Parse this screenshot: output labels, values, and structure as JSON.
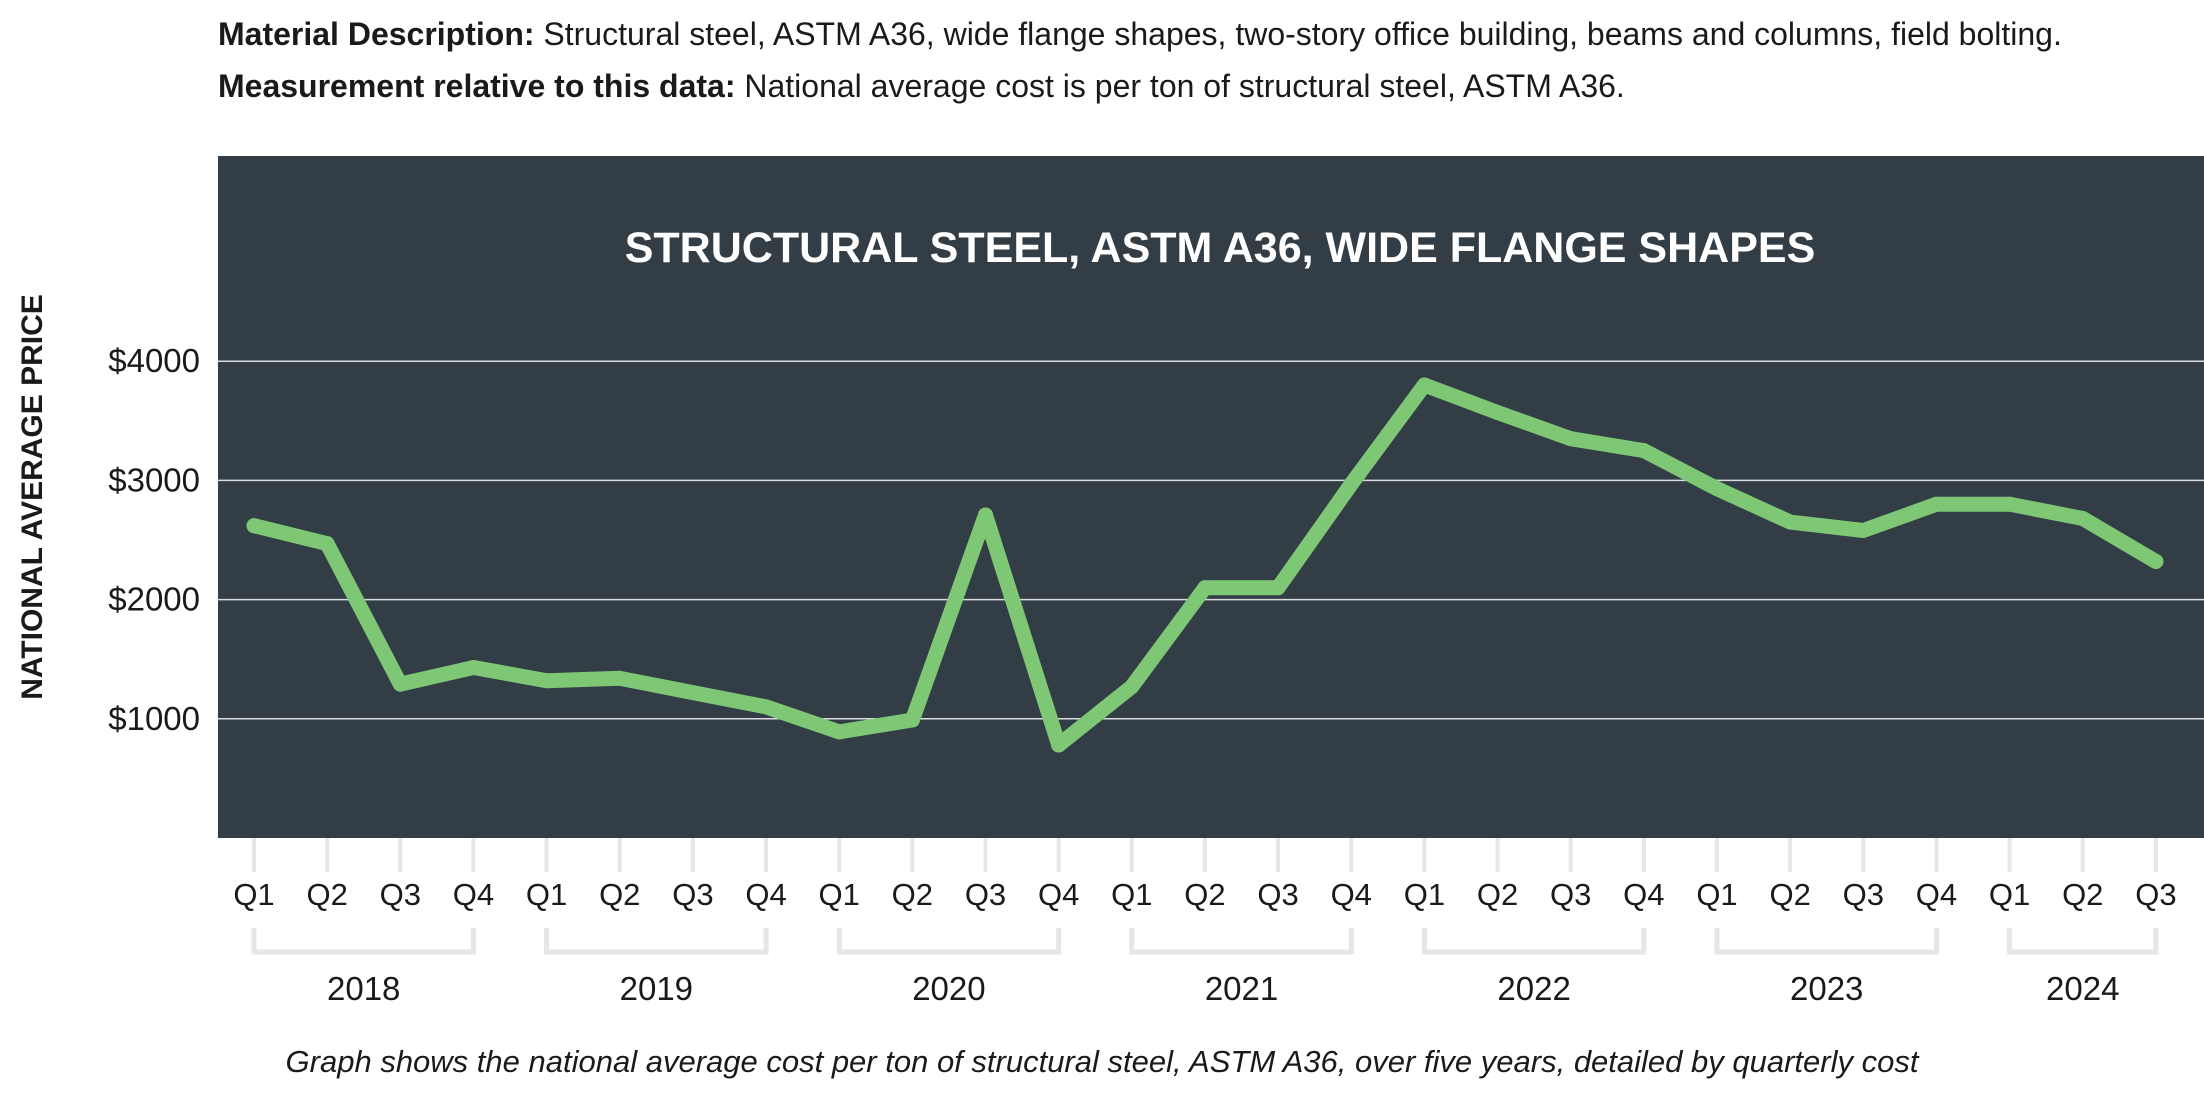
{
  "description": {
    "material_label": "Material Description:",
    "material_text": "Structural steel, ASTM A36, wide flange shapes, two-story office building, beams and columns, field bolting.",
    "measurement_label": "Measurement relative to this data:",
    "measurement_text": "National average cost is per ton of structural steel, ASTM A36."
  },
  "caption": "Graph shows the national average cost per ton of structural steel, ASTM A36, over five years, detailed by quarterly cost",
  "colors": {
    "panel_background": "#333d45",
    "series_line": "#7dc775",
    "gridline": "#d9dde0",
    "bracket": "#e4e7ea"
  },
  "chart_data": {
    "type": "line",
    "title": "STRUCTURAL STEEL, ASTM A36, WIDE FLANGE SHAPES",
    "ylabel": "NATIONAL AVERAGE PRICE",
    "xlabel": "",
    "ylim": [
      0,
      5000
    ],
    "y_ticks": [
      {
        "value": 1000,
        "label": "$1000"
      },
      {
        "value": 2000,
        "label": "$2000"
      },
      {
        "value": 3000,
        "label": "$3000"
      },
      {
        "value": 4000,
        "label": "$4000"
      }
    ],
    "grid": true,
    "legend": "none",
    "categories": [
      "Q1",
      "Q2",
      "Q3",
      "Q4",
      "Q1",
      "Q2",
      "Q3",
      "Q4",
      "Q1",
      "Q2",
      "Q3",
      "Q4",
      "Q1",
      "Q2",
      "Q3",
      "Q4",
      "Q1",
      "Q2",
      "Q3",
      "Q4",
      "Q1",
      "Q2",
      "Q3",
      "Q4",
      "Q1",
      "Q2",
      "Q3"
    ],
    "year_groups": [
      {
        "label": "2018",
        "start": 0,
        "end": 3
      },
      {
        "label": "2019",
        "start": 4,
        "end": 7
      },
      {
        "label": "2020",
        "start": 8,
        "end": 11
      },
      {
        "label": "2021",
        "start": 12,
        "end": 15
      },
      {
        "label": "2022",
        "start": 16,
        "end": 19
      },
      {
        "label": "2023",
        "start": 20,
        "end": 23
      },
      {
        "label": "2024",
        "start": 24,
        "end": 26
      }
    ],
    "series": [
      {
        "values": [
          2620,
          2470,
          1290,
          1430,
          1320,
          1340,
          1220,
          1100,
          890,
          990,
          2710,
          780,
          1270,
          2100,
          2100,
          2970,
          3800,
          3570,
          3350,
          3250,
          2930,
          2650,
          2580,
          2800,
          2800,
          2680,
          2320
        ]
      }
    ]
  }
}
